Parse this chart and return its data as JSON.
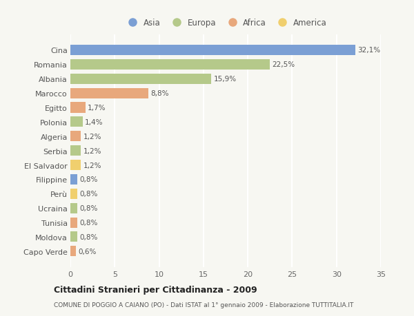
{
  "countries": [
    "Cina",
    "Romania",
    "Albania",
    "Marocco",
    "Egitto",
    "Polonia",
    "Algeria",
    "Serbia",
    "El Salvador",
    "Filippine",
    "Perù",
    "Ucraina",
    "Tunisia",
    "Moldova",
    "Capo Verde"
  ],
  "values": [
    32.1,
    22.5,
    15.9,
    8.8,
    1.7,
    1.4,
    1.2,
    1.2,
    1.2,
    0.8,
    0.8,
    0.8,
    0.8,
    0.8,
    0.6
  ],
  "labels": [
    "32,1%",
    "22,5%",
    "15,9%",
    "8,8%",
    "1,7%",
    "1,4%",
    "1,2%",
    "1,2%",
    "1,2%",
    "0,8%",
    "0,8%",
    "0,8%",
    "0,8%",
    "0,8%",
    "0,6%"
  ],
  "continents": [
    "Asia",
    "Europa",
    "Europa",
    "Africa",
    "Africa",
    "Europa",
    "Africa",
    "Europa",
    "America",
    "Asia",
    "America",
    "Europa",
    "Africa",
    "Europa",
    "Africa"
  ],
  "colors": {
    "Asia": "#7b9fd4",
    "Europa": "#b5c98a",
    "Africa": "#e8a87c",
    "America": "#f0cf6e"
  },
  "bg_color": "#f7f7f2",
  "grid_color": "#ffffff",
  "title": "Cittadini Stranieri per Cittadinanza - 2009",
  "subtitle": "COMUNE DI POGGIO A CAIANO (PO) - Dati ISTAT al 1° gennaio 2009 - Elaborazione TUTTITALIA.IT",
  "xlim": [
    0,
    35
  ],
  "xticks": [
    0,
    5,
    10,
    15,
    20,
    25,
    30,
    35
  ],
  "legend_order": [
    "Asia",
    "Europa",
    "Africa",
    "America"
  ]
}
